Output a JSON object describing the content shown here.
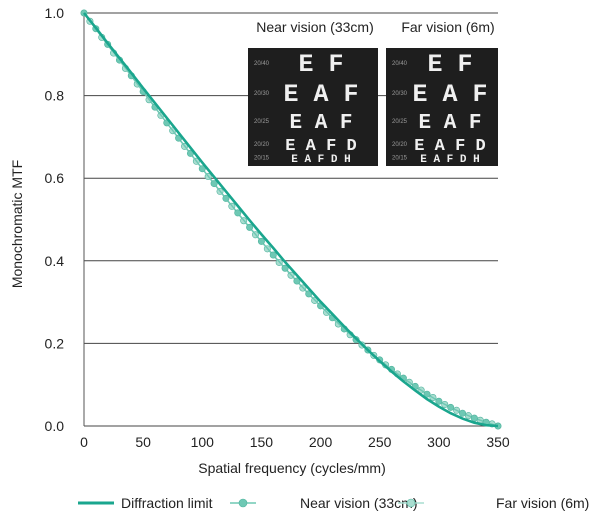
{
  "chart_data": {
    "type": "line",
    "title": "",
    "xlabel": "Spatial frequency (cycles/mm)",
    "ylabel": "Monochromatic MTF",
    "xlim": [
      0,
      350
    ],
    "ylim": [
      0,
      1
    ],
    "x_ticks": [
      0,
      50,
      100,
      150,
      200,
      250,
      300,
      350
    ],
    "y_ticks": [
      0.0,
      0.2,
      0.4,
      0.6,
      0.8,
      1.0
    ],
    "y_tick_labels": [
      "0.0",
      "0.2",
      "0.4",
      "0.6",
      "0.8",
      "1.0"
    ],
    "grid": "horizontal",
    "legend_position": "bottom",
    "series": [
      {
        "name": "Diffraction limit",
        "color": "#1aa68e",
        "marker": "none",
        "x": [
          0,
          10,
          20,
          30,
          40,
          50,
          60,
          70,
          80,
          90,
          100,
          110,
          120,
          130,
          140,
          150,
          160,
          170,
          180,
          190,
          200,
          210,
          220,
          230,
          240,
          250,
          260,
          270,
          280,
          290,
          300,
          310,
          320,
          330,
          340,
          350
        ],
        "y": [
          1.0,
          0.964,
          0.927,
          0.891,
          0.855,
          0.818,
          0.782,
          0.746,
          0.71,
          0.674,
          0.638,
          0.603,
          0.568,
          0.533,
          0.498,
          0.464,
          0.431,
          0.397,
          0.365,
          0.333,
          0.301,
          0.271,
          0.241,
          0.212,
          0.184,
          0.157,
          0.132,
          0.108,
          0.086,
          0.065,
          0.047,
          0.031,
          0.018,
          0.008,
          0.002,
          0.0
        ]
      },
      {
        "name": "Near vision (33cm)",
        "color": "#6ec8b4",
        "marker": "circle",
        "x": [
          0,
          10,
          20,
          30,
          40,
          50,
          60,
          70,
          80,
          90,
          100,
          110,
          120,
          130,
          140,
          150,
          160,
          170,
          180,
          190,
          200,
          210,
          220,
          230,
          240,
          250,
          260,
          270,
          280,
          290,
          300,
          310,
          320,
          330,
          340,
          350
        ],
        "y": [
          1.0,
          0.962,
          0.924,
          0.886,
          0.848,
          0.81,
          0.772,
          0.734,
          0.697,
          0.66,
          0.623,
          0.587,
          0.551,
          0.516,
          0.481,
          0.447,
          0.414,
          0.382,
          0.351,
          0.32,
          0.291,
          0.262,
          0.235,
          0.209,
          0.184,
          0.16,
          0.137,
          0.116,
          0.096,
          0.077,
          0.06,
          0.045,
          0.031,
          0.019,
          0.009,
          0.0
        ]
      },
      {
        "name": "Far vision (6m)",
        "color": "#a9ddd0",
        "marker": "circle",
        "x": [
          5,
          15,
          25,
          35,
          45,
          55,
          65,
          75,
          85,
          95,
          105,
          115,
          125,
          135,
          145,
          155,
          165,
          175,
          185,
          195,
          205,
          215,
          225,
          235,
          245,
          255,
          265,
          275,
          285,
          295,
          305,
          315,
          325,
          335,
          345
        ],
        "y": [
          0.98,
          0.941,
          0.903,
          0.866,
          0.828,
          0.79,
          0.752,
          0.715,
          0.677,
          0.641,
          0.604,
          0.568,
          0.532,
          0.497,
          0.463,
          0.429,
          0.396,
          0.365,
          0.334,
          0.304,
          0.275,
          0.247,
          0.221,
          0.196,
          0.171,
          0.148,
          0.126,
          0.106,
          0.087,
          0.069,
          0.052,
          0.038,
          0.025,
          0.014,
          0.005
        ]
      }
    ]
  },
  "insets": [
    {
      "label": "Near vision (33cm)",
      "rows": [
        {
          "letters": "E F",
          "note": "20/40"
        },
        {
          "letters": "E A F",
          "note": "20/30"
        },
        {
          "letters": "E A F",
          "note": "20/25"
        },
        {
          "letters": "E A F D",
          "note": "20/20"
        },
        {
          "letters": "E A F D H",
          "note": "20/15"
        }
      ]
    },
    {
      "label": "Far vision (6m)",
      "rows": [
        {
          "letters": "E F",
          "note": "20/40"
        },
        {
          "letters": "E A F",
          "note": "20/30"
        },
        {
          "letters": "E A F",
          "note": "20/25"
        },
        {
          "letters": "E A F D",
          "note": "20/20"
        },
        {
          "letters": "E A F D H",
          "note": "20/15"
        }
      ]
    }
  ],
  "colors": {
    "background": "#ffffff",
    "gridline": "#444444",
    "axis": "#555555",
    "inset_bg": "#1e1e1e",
    "inset_text": "#f0f0f0",
    "inset_note": "#9a9a9a"
  }
}
